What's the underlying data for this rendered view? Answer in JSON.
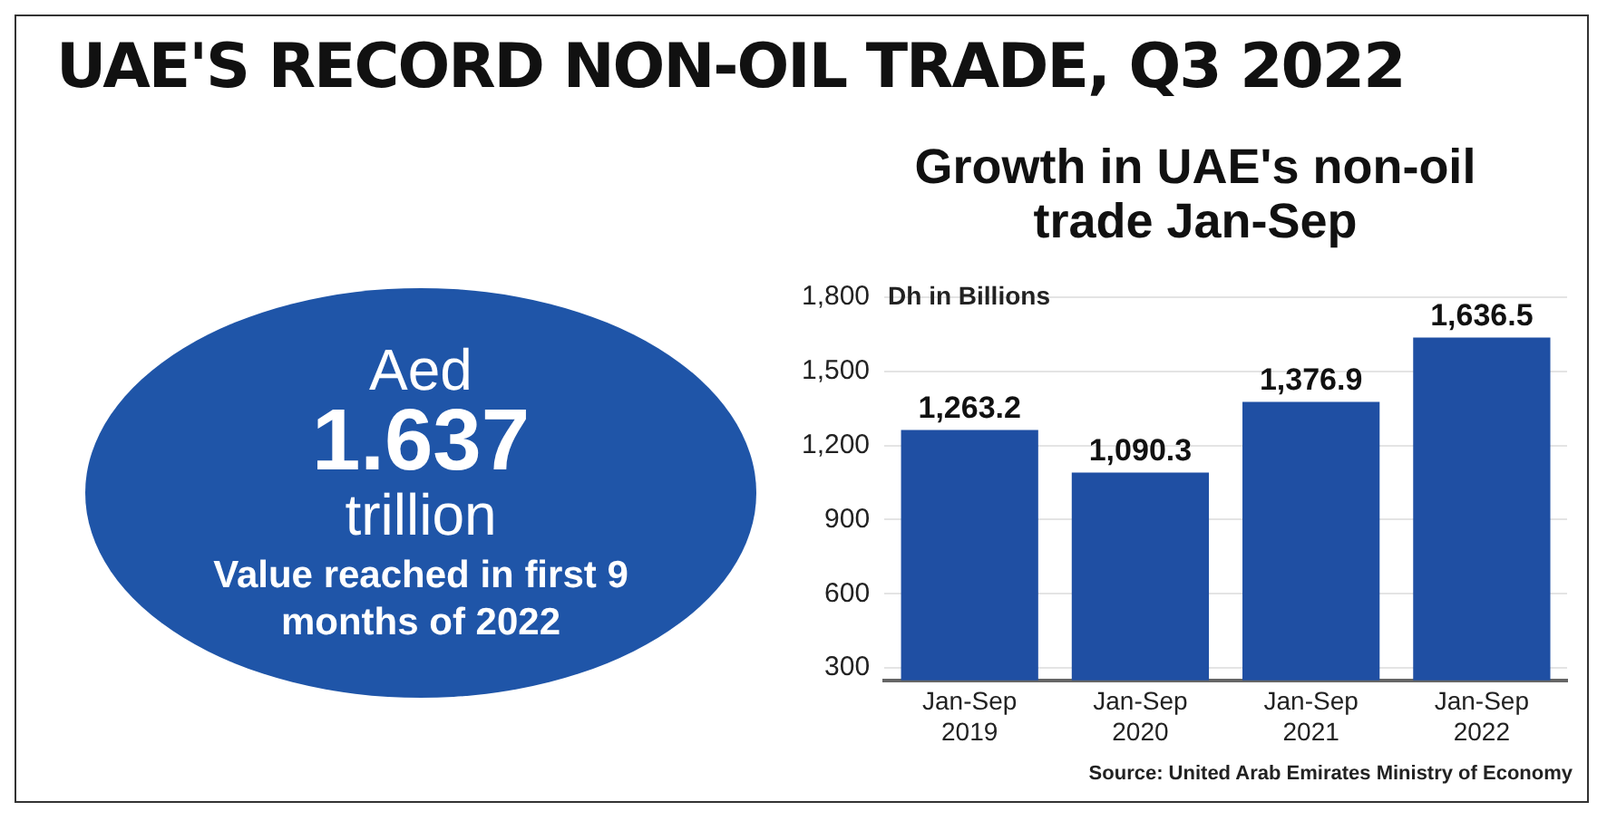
{
  "chart_data": {
    "type": "bar",
    "title": "UAE'S RECORD NON-OIL TRADE, Q3 2022",
    "subtitle": "Growth in UAE's non-oil trade Jan-Sep",
    "ylabel": "Dh in Billions",
    "categories": [
      "Jan-Sep 2019",
      "Jan-Sep 2020",
      "Jan-Sep 2021",
      "Jan-Sep 2022"
    ],
    "values": [
      1263.2,
      1090.3,
      1376.9,
      1636.5
    ],
    "color": "#1f4fa3",
    "ylim": [
      250,
      1800
    ],
    "yticks": [
      {
        "value": 300,
        "label": "300"
      },
      {
        "value": 600,
        "label": "600"
      },
      {
        "value": 900,
        "label": "900"
      },
      {
        "value": 1200,
        "label": "1,200"
      },
      {
        "value": 1500,
        "label": "1,500"
      },
      {
        "value": 1800,
        "label": "1,800"
      }
    ],
    "value_labels": [
      "1,263.2",
      "1,090.3",
      "1,376.9",
      "1,636.5"
    ],
    "grid": "y",
    "legend": false,
    "annotations": [
      "Aed",
      "1.637",
      "trillion",
      "Value reached in first 9 months of 2022",
      "Source: United Arab Emirates Ministry of Economy"
    ]
  }
}
